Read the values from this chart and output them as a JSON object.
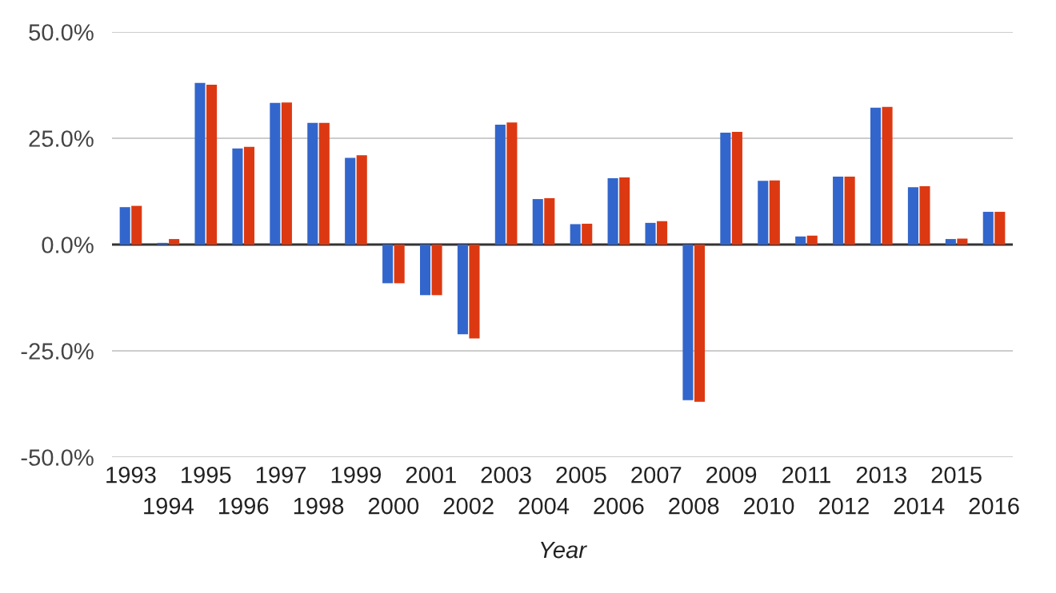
{
  "chart_data": {
    "type": "bar",
    "xlabel": "Year",
    "categories": [
      "1993",
      "1994",
      "1995",
      "1996",
      "1997",
      "1998",
      "1999",
      "2000",
      "2001",
      "2002",
      "2003",
      "2004",
      "2005",
      "2006",
      "2007",
      "2008",
      "2009",
      "2010",
      "2011",
      "2012",
      "2013",
      "2014",
      "2015",
      "2016"
    ],
    "series": [
      {
        "color": "#3366cc",
        "values": [
          8.8,
          0.4,
          38.0,
          22.6,
          33.3,
          28.6,
          20.4,
          -9.1,
          -11.9,
          -21.1,
          28.2,
          10.7,
          4.8,
          15.6,
          5.1,
          -36.6,
          26.3,
          15.0,
          1.9,
          16.0,
          32.2,
          13.5,
          1.3,
          7.7
        ]
      },
      {
        "color": "#dc3912",
        "values": [
          9.1,
          1.3,
          37.6,
          23.0,
          33.4,
          28.6,
          21.0,
          -9.1,
          -11.9,
          -22.1,
          28.7,
          10.9,
          4.9,
          15.8,
          5.5,
          -37.0,
          26.5,
          15.1,
          2.1,
          16.0,
          32.4,
          13.7,
          1.4,
          7.7
        ]
      }
    ],
    "ylim": [
      -50,
      50
    ],
    "yticks": [
      {
        "value": -50,
        "label": "-50.0%"
      },
      {
        "value": -25,
        "label": "-25.0%"
      },
      {
        "value": 0,
        "label": "0.0%"
      },
      {
        "value": 25,
        "label": "25.0%"
      },
      {
        "value": 50,
        "label": "50.0%"
      }
    ],
    "grid": "y",
    "legend": false
  }
}
